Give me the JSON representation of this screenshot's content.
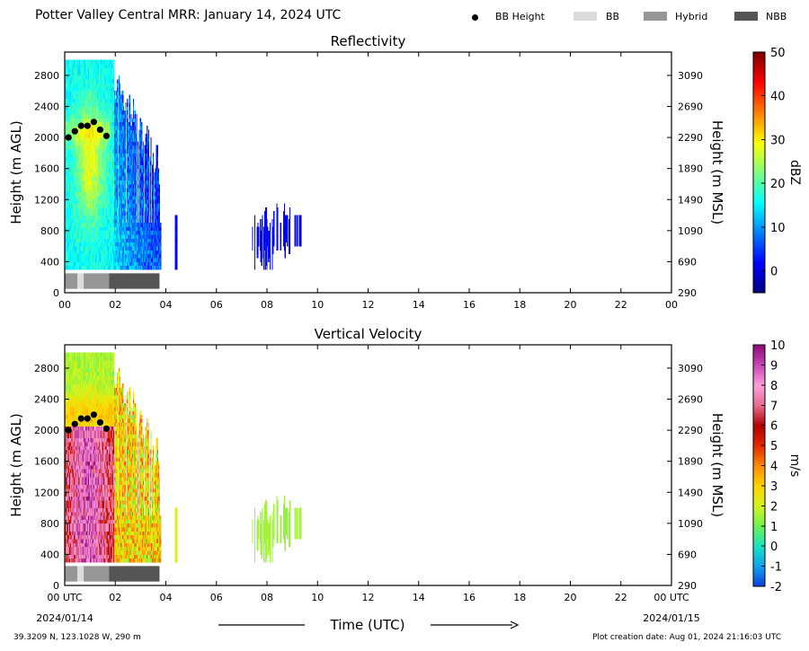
{
  "page": {
    "title": "Potter Valley Central MRR:  January 14, 2024 UTC",
    "footer_left": "39.3209 N, 123.1028 W, 290 m",
    "footer_right": "Plot creation date: Aug 01, 2024 21:16:03 UTC",
    "x_axis_title": "Time (UTC)",
    "date_start": "2024/01/14",
    "date_end": "2024/01/15"
  },
  "legend": [
    {
      "label": "BB Height",
      "marker": "dot",
      "color": "#000000"
    },
    {
      "label": "BB",
      "marker": "swatch",
      "color": "#dcdcdc"
    },
    {
      "label": "Hybrid",
      "marker": "swatch",
      "color": "#969696"
    },
    {
      "label": "NBB",
      "marker": "swatch",
      "color": "#555555"
    }
  ],
  "chart_data": [
    {
      "type": "heatmap",
      "title": "Reflectivity",
      "ylabel": "Height (m AGL)",
      "ylabel_right": "Height (m MSL)",
      "colorbar_label": "dBZ",
      "colorbar_range": [
        -5,
        50
      ],
      "colorbar_ticks": [
        "0",
        "10",
        "20",
        "30",
        "40",
        "50"
      ],
      "colorbar_tick_values": [
        0,
        10,
        20,
        30,
        40,
        50
      ],
      "colormap": [
        "#00007f",
        "#0000ff",
        "#007fff",
        "#00ffff",
        "#7fff7f",
        "#ffff00",
        "#ff7f00",
        "#ff0000",
        "#7f0000"
      ],
      "xlim": [
        0,
        24
      ],
      "ylim": [
        0,
        3100
      ],
      "x_ticks": [
        "00",
        "02",
        "04",
        "06",
        "08",
        "10",
        "12",
        "14",
        "16",
        "18",
        "20",
        "22",
        "00"
      ],
      "x_tick_values": [
        0,
        2,
        4,
        6,
        8,
        10,
        12,
        14,
        16,
        18,
        20,
        22,
        24
      ],
      "y_ticks": [
        "0",
        "400",
        "800",
        "1200",
        "1600",
        "2000",
        "2400",
        "2800"
      ],
      "y_tick_values": [
        0,
        400,
        800,
        1200,
        1600,
        2000,
        2400,
        2800
      ],
      "y_ticks_right": [
        "290",
        "690",
        "1090",
        "1490",
        "1890",
        "2290",
        "2690",
        "3090"
      ],
      "bb_height": [
        {
          "x": 0.15,
          "y": 2000
        },
        {
          "x": 0.4,
          "y": 2080
        },
        {
          "x": 0.65,
          "y": 2150
        },
        {
          "x": 0.9,
          "y": 2150
        },
        {
          "x": 1.15,
          "y": 2200
        },
        {
          "x": 1.4,
          "y": 2100
        },
        {
          "x": 1.65,
          "y": 2020
        }
      ],
      "bb_type": [
        {
          "x0": 0.0,
          "x1": 0.5,
          "class": "Hybrid"
        },
        {
          "x0": 0.5,
          "x1": 0.75,
          "class": "BB"
        },
        {
          "x0": 0.75,
          "x1": 1.75,
          "class": "Hybrid"
        },
        {
          "x0": 1.75,
          "x1": 3.75,
          "class": "NBB"
        }
      ]
    },
    {
      "type": "heatmap",
      "title": "Vertical Velocity",
      "ylabel": "Height (m AGL)",
      "ylabel_right": "Height (m MSL)",
      "colorbar_label": "m/s",
      "colorbar_range": [
        -2,
        10
      ],
      "colorbar_ticks": [
        "-2",
        "-1",
        "0",
        "1",
        "2",
        "3",
        "4",
        "5",
        "6",
        "7",
        "8",
        "9",
        "10"
      ],
      "colorbar_tick_values": [
        -2,
        -1,
        0,
        1,
        2,
        3,
        4,
        5,
        6,
        7,
        8,
        9,
        10
      ],
      "colormap": [
        "#0b3bdc",
        "#0fa0ef",
        "#18e3c0",
        "#6cf254",
        "#d5f51a",
        "#ffd400",
        "#ff8a00",
        "#e22a00",
        "#b20000",
        "#e86a8e",
        "#ff9fdc",
        "#c846b4",
        "#8c0a78"
      ],
      "xlim": [
        0,
        24
      ],
      "ylim": [
        0,
        3100
      ],
      "x_ticks": [
        "00 UTC",
        "02",
        "04",
        "06",
        "08",
        "10",
        "12",
        "14",
        "16",
        "18",
        "20",
        "22",
        "00 UTC"
      ],
      "x_tick_values": [
        0,
        2,
        4,
        6,
        8,
        10,
        12,
        14,
        16,
        18,
        20,
        22,
        24
      ],
      "y_ticks": [
        "0",
        "400",
        "800",
        "1200",
        "1600",
        "2000",
        "2400",
        "2800"
      ],
      "y_tick_values": [
        0,
        400,
        800,
        1200,
        1600,
        2000,
        2400,
        2800
      ],
      "y_ticks_right": [
        "290",
        "690",
        "1090",
        "1490",
        "1890",
        "2290",
        "2690",
        "3090"
      ],
      "bb_height": [
        {
          "x": 0.15,
          "y": 2000
        },
        {
          "x": 0.4,
          "y": 2080
        },
        {
          "x": 0.65,
          "y": 2150
        },
        {
          "x": 0.9,
          "y": 2150
        },
        {
          "x": 1.15,
          "y": 2200
        },
        {
          "x": 1.4,
          "y": 2100
        },
        {
          "x": 1.65,
          "y": 2020
        }
      ],
      "bb_type": [
        {
          "x0": 0.0,
          "x1": 0.5,
          "class": "Hybrid"
        },
        {
          "x0": 0.5,
          "x1": 0.75,
          "class": "BB"
        },
        {
          "x0": 0.75,
          "x1": 1.75,
          "class": "Hybrid"
        },
        {
          "x0": 1.75,
          "x1": 3.75,
          "class": "NBB"
        }
      ]
    }
  ]
}
